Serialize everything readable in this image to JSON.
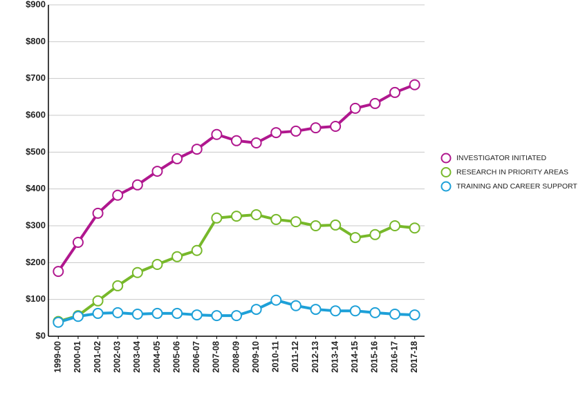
{
  "chart_data": {
    "type": "line",
    "categories": [
      "1999-00",
      "2000-01",
      "2001-02",
      "2002-03",
      "2003-04",
      "2004-05",
      "2005-06",
      "2006-07",
      "2007-08",
      "2008-09",
      "2009-10",
      "2010-11",
      "2011-12",
      "2012-13",
      "2013-14",
      "2014-15",
      "2015-16",
      "2016-17",
      "2017-18"
    ],
    "series": [
      {
        "name": "INVESTIGATOR INITIATED",
        "color": "#b0178e",
        "values": [
          176,
          255,
          334,
          383,
          411,
          448,
          482,
          508,
          548,
          531,
          525,
          553,
          557,
          566,
          570,
          619,
          632,
          662,
          683
        ]
      },
      {
        "name": "RESEARCH IN PRIORITY AREAS",
        "color": "#77b82a",
        "values": [
          40,
          56,
          96,
          137,
          173,
          195,
          216,
          233,
          321,
          326,
          330,
          317,
          311,
          300,
          302,
          268,
          276,
          300,
          294
        ]
      },
      {
        "name": "TRAINING AND CAREER SUPPORT",
        "color": "#1da0d8",
        "values": [
          38,
          54,
          62,
          64,
          60,
          62,
          62,
          58,
          56,
          56,
          73,
          98,
          83,
          73,
          69,
          69,
          64,
          60,
          58
        ]
      }
    ],
    "ylim": [
      0,
      900
    ],
    "yticks": [
      {
        "value": 0,
        "label": "$0"
      },
      {
        "value": 100,
        "label": "$100"
      },
      {
        "value": 200,
        "label": "$200"
      },
      {
        "value": 300,
        "label": "$300"
      },
      {
        "value": 400,
        "label": "$400"
      },
      {
        "value": 500,
        "label": "$500"
      },
      {
        "value": 600,
        "label": "$600"
      },
      {
        "value": 700,
        "label": "$700"
      },
      {
        "value": 800,
        "label": "$800"
      },
      {
        "value": 900,
        "label": "$900"
      }
    ],
    "grid": true,
    "legend": "right"
  }
}
